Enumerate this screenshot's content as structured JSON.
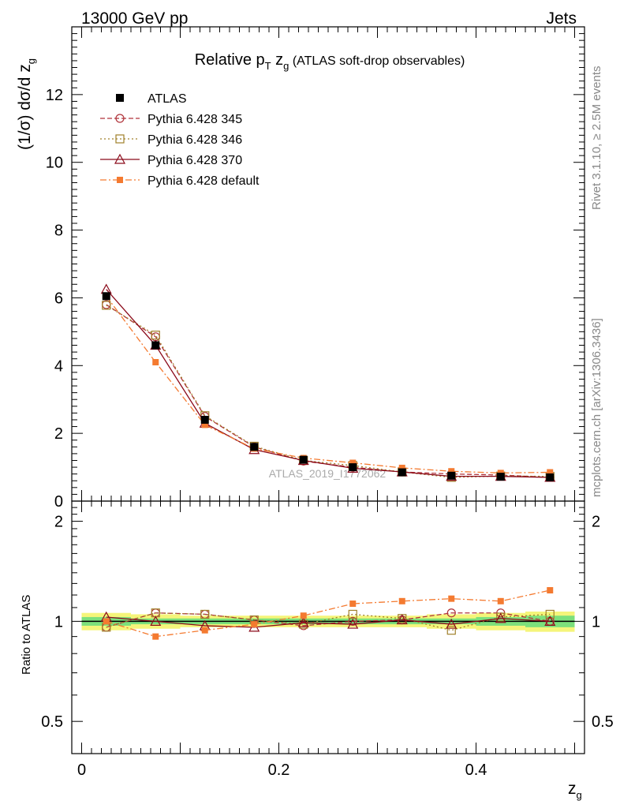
{
  "header": {
    "energy": "13000 GeV pp",
    "process": "Jets",
    "title_main": "Relative p",
    "title_sub": "T",
    "title_z": " z",
    "title_g": "g",
    "title_rest": " (ATLAS soft-drop observables)",
    "side_rivet": "Rivet 3.1.10, ≥ 2.5M events",
    "side_mcplots": "mcplots.cern.ch [arXiv:1306.3436]",
    "watermark": "ATLAS_2019_I1772062"
  },
  "axes": {
    "ylabel_main": "(1/σ) dσ/d z",
    "ylabel_main_sub": "g",
    "ylabel_ratio": "Ratio to ATLAS",
    "xlabel": "z",
    "xlabel_sub": "g",
    "x_ticks": [
      "0",
      "0.2",
      "0.4"
    ],
    "y_ticks_main": [
      "0",
      "2",
      "4",
      "6",
      "8",
      "10",
      "12"
    ],
    "y_ticks_ratio": [
      "0.5",
      "1",
      "2"
    ]
  },
  "colors": {
    "data": "#000000",
    "p345": "#b0333a",
    "p346": "#a0802a",
    "p370": "#8b0a1a",
    "pdefault": "#f47a30",
    "band_inner": "#7ce07c",
    "band_outer": "#f5f57a"
  },
  "chart_data": {
    "type": "line",
    "x": [
      0.025,
      0.075,
      0.125,
      0.175,
      0.225,
      0.275,
      0.325,
      0.375,
      0.425,
      0.475
    ],
    "xlim": [
      -0.01,
      0.51
    ],
    "ylim_main": [
      0,
      14
    ],
    "ylim_ratio": [
      0.4,
      2.3
    ],
    "ratio_scale": "log",
    "series": [
      {
        "name": "ATLAS",
        "key": "data",
        "marker": "square-filled",
        "values": [
          6.05,
          4.6,
          2.4,
          1.6,
          1.22,
          1.0,
          0.85,
          0.75,
          0.72,
          0.7
        ]
      },
      {
        "name": "Pythia 6.428 345",
        "key": "p345",
        "marker": "circle-open",
        "dash": "6,3",
        "values": [
          5.8,
          4.85,
          2.5,
          1.6,
          1.18,
          1.0,
          0.86,
          0.8,
          0.77,
          0.7
        ]
      },
      {
        "name": "Pythia 6.428 346",
        "key": "p346",
        "marker": "square-open",
        "dash": "2,3",
        "values": [
          5.78,
          4.9,
          2.52,
          1.62,
          1.2,
          1.05,
          0.86,
          0.7,
          0.74,
          0.73
        ]
      },
      {
        "name": "Pythia 6.428 370",
        "key": "p370",
        "marker": "triangle-open",
        "dash": "",
        "values": [
          6.25,
          4.6,
          2.3,
          1.52,
          1.2,
          0.97,
          0.86,
          0.73,
          0.73,
          0.7
        ]
      },
      {
        "name": "Pythia 6.428 default",
        "key": "pdefault",
        "marker": "square-filled-small",
        "dash": "8,3,2,3",
        "values": [
          6.05,
          4.1,
          2.25,
          1.55,
          1.27,
          1.13,
          0.98,
          0.88,
          0.83,
          0.85
        ]
      }
    ],
    "ratio_series": [
      {
        "key": "p345",
        "values": [
          0.96,
          1.06,
          1.05,
          1.01,
          0.97,
          1.0,
          1.01,
          1.06,
          1.06,
          1.0
        ]
      },
      {
        "key": "p346",
        "values": [
          0.96,
          1.06,
          1.05,
          1.01,
          0.98,
          1.05,
          1.02,
          0.94,
          1.03,
          1.05
        ]
      },
      {
        "key": "p370",
        "values": [
          1.03,
          1.0,
          0.97,
          0.96,
          0.99,
          0.98,
          1.01,
          0.98,
          1.02,
          1.0
        ]
      },
      {
        "key": "pdefault",
        "values": [
          1.0,
          0.9,
          0.94,
          0.98,
          1.04,
          1.13,
          1.15,
          1.17,
          1.15,
          1.24
        ]
      }
    ],
    "band_inner": [
      0.03,
      0.02,
      0.02,
      0.02,
      0.02,
      0.02,
      0.02,
      0.02,
      0.03,
      0.04
    ],
    "band_outer": [
      0.06,
      0.05,
      0.04,
      0.04,
      0.04,
      0.04,
      0.04,
      0.05,
      0.06,
      0.07
    ],
    "legend_position": "top-left",
    "grid": false
  }
}
